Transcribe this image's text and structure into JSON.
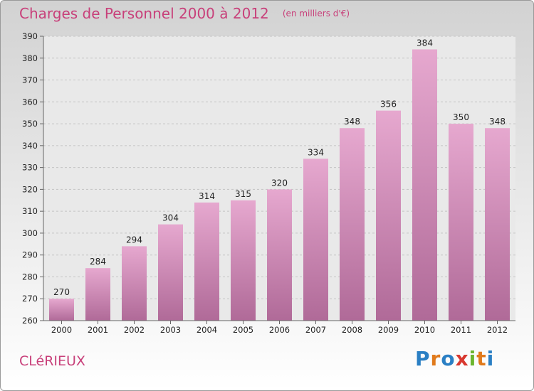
{
  "header": {
    "title": "Charges de Personnel 2000 à 2012",
    "subtitle": "(en milliers d'€)"
  },
  "footer": {
    "commune": "CLéRIEUX",
    "brand": "Proxiti"
  },
  "colors": {
    "accent": "#c8407a",
    "bar_top": "#e6a8cf",
    "bar_bottom": "#b06a98"
  },
  "chart_data": {
    "type": "bar",
    "title": "Charges de Personnel 2000 à 2012",
    "subtitle": "(en milliers d'€)",
    "xlabel": "",
    "ylabel": "",
    "categories": [
      "2000",
      "2001",
      "2002",
      "2003",
      "2004",
      "2005",
      "2006",
      "2007",
      "2008",
      "2009",
      "2010",
      "2011",
      "2012"
    ],
    "values": [
      270,
      284,
      294,
      304,
      314,
      315,
      320,
      334,
      348,
      356,
      384,
      350,
      348
    ],
    "ylim": [
      260,
      390
    ],
    "yticks": [
      260,
      270,
      280,
      290,
      300,
      310,
      320,
      330,
      340,
      350,
      360,
      370,
      380,
      390
    ],
    "grid": "horizontal dashed",
    "legend": "none"
  }
}
